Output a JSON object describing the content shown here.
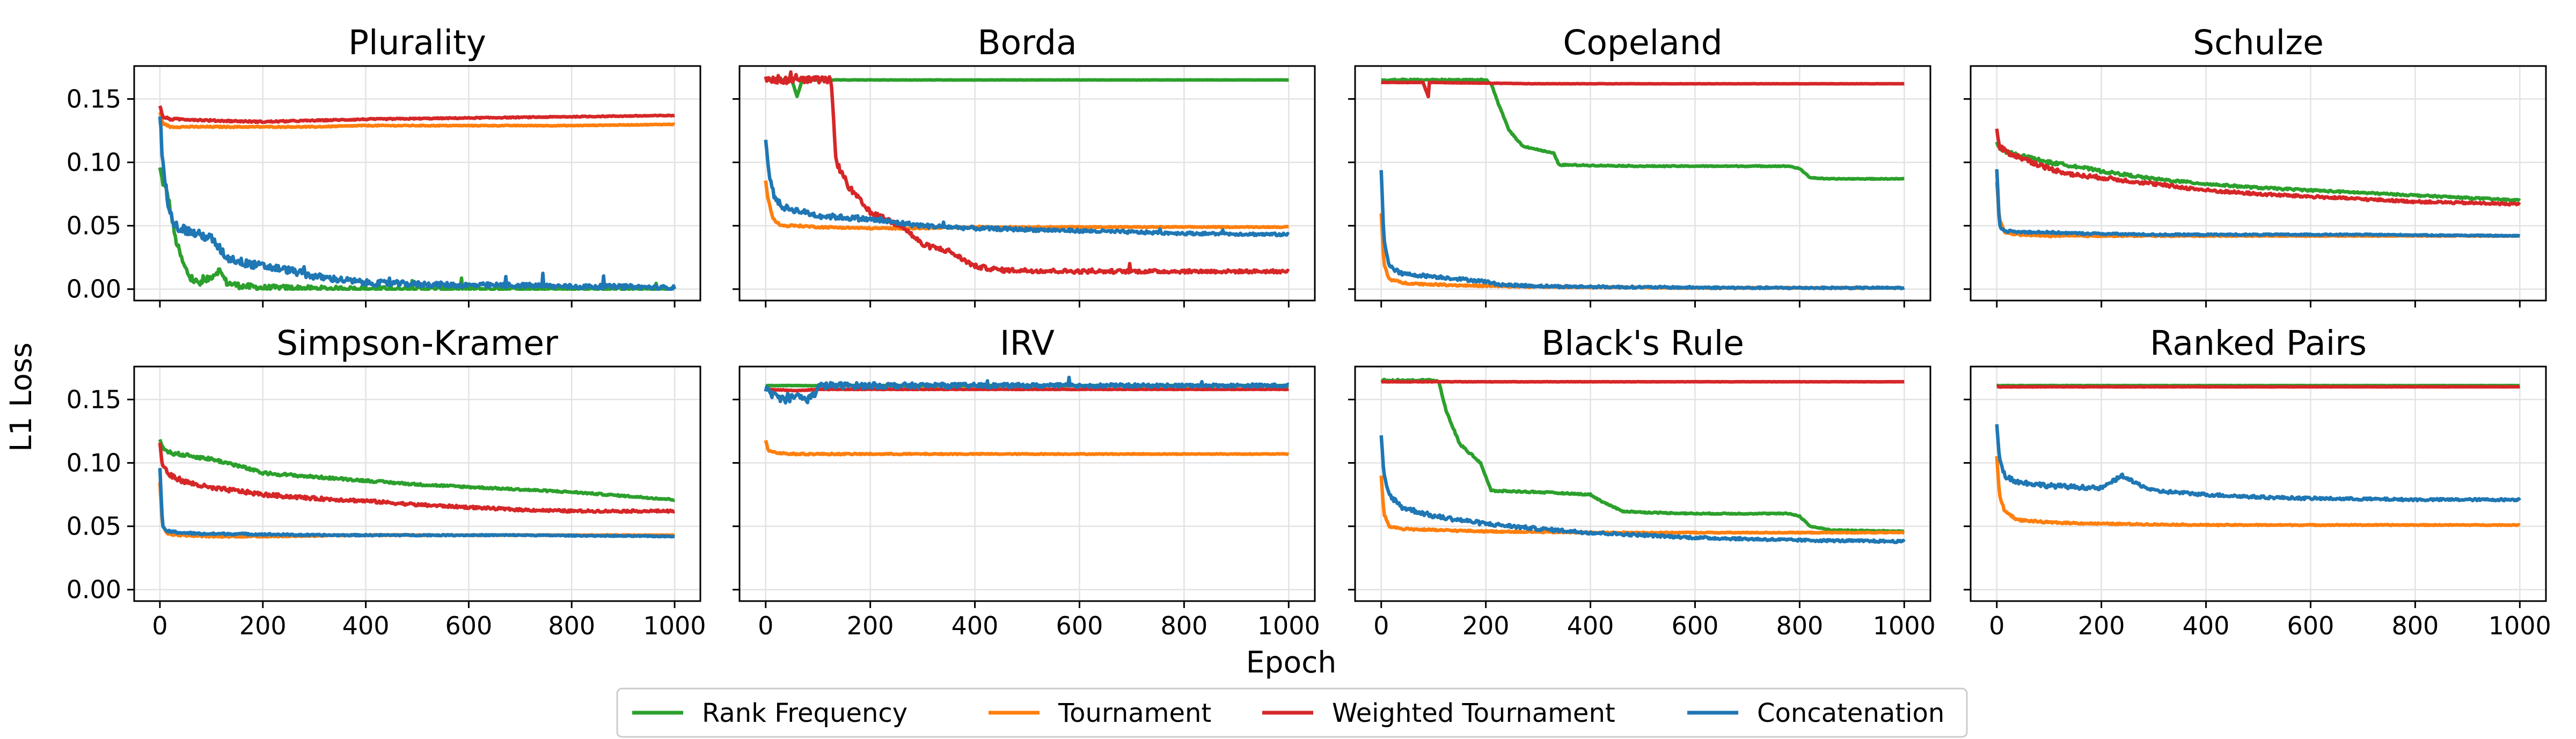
{
  "figure": {
    "xlabel": "Epoch",
    "ylabel": "L1 Loss",
    "xticks": [
      0,
      200,
      400,
      600,
      800,
      1000
    ],
    "yticks": [
      0.0,
      0.05,
      0.1,
      0.15
    ],
    "xlim": [
      -50,
      1050
    ],
    "ylim": [
      -0.009,
      0.176
    ],
    "grid": true,
    "legend_position": "bottom-center",
    "colors": {
      "Rank Frequency": "#2ca02c",
      "Tournament": "#ff7f0e",
      "Weighted Tournament": "#d62728",
      "Concatenation": "#1f77b4"
    }
  },
  "legend": [
    "Rank Frequency",
    "Tournament",
    "Weighted Tournament",
    "Concatenation"
  ],
  "chart_data": [
    {
      "type": "line",
      "title": "Plurality",
      "series": [
        {
          "name": "Rank Frequency",
          "x": [
            0,
            5,
            15,
            30,
            45,
            60,
            80,
            100,
            115,
            130,
            150,
            170,
            200,
            250,
            300,
            400,
            600,
            800,
            1000
          ],
          "y": [
            0.095,
            0.085,
            0.075,
            0.04,
            0.02,
            0.008,
            0.004,
            0.01,
            0.015,
            0.005,
            0.003,
            0.002,
            0.001,
            0.001,
            0.0005,
            0.0003,
            0.0002,
            0.0001,
            0.0001
          ],
          "noise": 0.003
        },
        {
          "name": "Tournament",
          "x": [
            0,
            5,
            20,
            50,
            100,
            200,
            300,
            400,
            600,
            800,
            1000
          ],
          "y": [
            0.14,
            0.131,
            0.128,
            0.128,
            0.128,
            0.128,
            0.128,
            0.129,
            0.129,
            0.129,
            0.13
          ],
          "noise": 0.0006
        },
        {
          "name": "Weighted Tournament",
          "x": [
            0,
            5,
            20,
            50,
            100,
            200,
            300,
            400,
            600,
            800,
            1000
          ],
          "y": [
            0.145,
            0.136,
            0.134,
            0.134,
            0.133,
            0.132,
            0.133,
            0.134,
            0.135,
            0.136,
            0.137
          ],
          "noise": 0.0008
        },
        {
          "name": "Concatenation",
          "x": [
            0,
            5,
            15,
            30,
            60,
            100,
            130,
            170,
            250,
            300,
            400,
            500,
            600,
            700,
            800,
            900,
            1000
          ],
          "y": [
            0.14,
            0.1,
            0.07,
            0.05,
            0.045,
            0.04,
            0.025,
            0.02,
            0.015,
            0.01,
            0.005,
            0.004,
            0.003,
            0.003,
            0.002,
            0.002,
            0.001
          ],
          "noise": 0.004
        }
      ]
    },
    {
      "type": "line",
      "title": "Borda",
      "series": [
        {
          "name": "Rank Frequency",
          "x": [
            0,
            50,
            60,
            70,
            100,
            400,
            1000
          ],
          "y": [
            0.165,
            0.165,
            0.152,
            0.165,
            0.165,
            0.165,
            0.165
          ],
          "noise": 0.0002
        },
        {
          "name": "Tournament",
          "x": [
            0,
            5,
            15,
            30,
            60,
            100,
            200,
            300,
            400,
            600,
            800,
            1000
          ],
          "y": [
            0.085,
            0.07,
            0.055,
            0.05,
            0.05,
            0.049,
            0.048,
            0.048,
            0.049,
            0.049,
            0.049,
            0.049
          ],
          "noise": 0.0008
        },
        {
          "name": "Weighted Tournament",
          "x": [
            0,
            100,
            125,
            135,
            160,
            200,
            260,
            300,
            350,
            400,
            450,
            600,
            800,
            1000
          ],
          "y": [
            0.165,
            0.165,
            0.165,
            0.1,
            0.08,
            0.06,
            0.05,
            0.035,
            0.03,
            0.018,
            0.015,
            0.014,
            0.014,
            0.014
          ],
          "noise": 0.003
        },
        {
          "name": "Concatenation",
          "x": [
            0,
            5,
            15,
            30,
            60,
            100,
            200,
            300,
            400,
            600,
            800,
            1000
          ],
          "y": [
            0.118,
            0.095,
            0.075,
            0.065,
            0.062,
            0.058,
            0.055,
            0.05,
            0.048,
            0.046,
            0.044,
            0.043
          ],
          "noise": 0.0025
        }
      ]
    },
    {
      "type": "line",
      "title": "Copeland",
      "series": [
        {
          "name": "Rank Frequency",
          "x": [
            0,
            200,
            210,
            225,
            245,
            270,
            300,
            330,
            340,
            500,
            780,
            800,
            820,
            850,
            1000
          ],
          "y": [
            0.165,
            0.165,
            0.162,
            0.145,
            0.125,
            0.113,
            0.11,
            0.107,
            0.098,
            0.097,
            0.097,
            0.095,
            0.088,
            0.087,
            0.087
          ],
          "noise": 0.0007
        },
        {
          "name": "Tournament",
          "x": [
            0,
            5,
            15,
            40,
            80,
            150,
            250,
            400,
            600,
            800,
            1000
          ],
          "y": [
            0.06,
            0.02,
            0.008,
            0.005,
            0.004,
            0.003,
            0.002,
            0.0015,
            0.001,
            0.001,
            0.001
          ],
          "noise": 0.0008
        },
        {
          "name": "Weighted Tournament",
          "x": [
            0,
            80,
            90,
            92,
            100,
            300,
            600,
            1000
          ],
          "y": [
            0.163,
            0.163,
            0.152,
            0.163,
            0.163,
            0.162,
            0.162,
            0.162
          ],
          "noise": 0.0002
        },
        {
          "name": "Concatenation",
          "x": [
            0,
            5,
            15,
            40,
            100,
            150,
            200,
            220,
            250,
            350,
            500,
            700,
            1000
          ],
          "y": [
            0.095,
            0.04,
            0.018,
            0.012,
            0.01,
            0.008,
            0.006,
            0.004,
            0.003,
            0.002,
            0.0015,
            0.001,
            0.001
          ],
          "noise": 0.0015
        }
      ]
    },
    {
      "type": "line",
      "title": "Schulze",
      "series": [
        {
          "name": "Rank Frequency",
          "x": [
            0,
            5,
            20,
            50,
            100,
            150,
            200,
            250,
            300,
            400,
            500,
            600,
            700,
            800,
            900,
            1000
          ],
          "y": [
            0.115,
            0.11,
            0.108,
            0.105,
            0.1,
            0.097,
            0.093,
            0.09,
            0.087,
            0.083,
            0.08,
            0.078,
            0.076,
            0.074,
            0.072,
            0.07
          ],
          "noise": 0.0015
        },
        {
          "name": "Tournament",
          "x": [
            0,
            5,
            15,
            40,
            100,
            200,
            400,
            600,
            800,
            1000
          ],
          "y": [
            0.085,
            0.055,
            0.045,
            0.043,
            0.042,
            0.042,
            0.042,
            0.042,
            0.042,
            0.042
          ],
          "noise": 0.0007
        },
        {
          "name": "Weighted Tournament",
          "x": [
            0,
            5,
            20,
            50,
            100,
            150,
            200,
            300,
            400,
            500,
            600,
            700,
            800,
            900,
            1000
          ],
          "y": [
            0.125,
            0.112,
            0.108,
            0.103,
            0.095,
            0.09,
            0.088,
            0.083,
            0.078,
            0.075,
            0.073,
            0.071,
            0.069,
            0.068,
            0.067
          ],
          "noise": 0.002
        },
        {
          "name": "Concatenation",
          "x": [
            0,
            5,
            15,
            40,
            80,
            150,
            300,
            500,
            700,
            1000
          ],
          "y": [
            0.095,
            0.05,
            0.046,
            0.045,
            0.045,
            0.044,
            0.043,
            0.043,
            0.043,
            0.042
          ],
          "noise": 0.0009
        }
      ]
    },
    {
      "type": "line",
      "title": "Simpson-Kramer",
      "series": [
        {
          "name": "Rank Frequency",
          "x": [
            0,
            5,
            20,
            50,
            100,
            150,
            200,
            300,
            400,
            500,
            600,
            700,
            800,
            900,
            1000
          ],
          "y": [
            0.12,
            0.112,
            0.108,
            0.106,
            0.103,
            0.098,
            0.092,
            0.089,
            0.086,
            0.083,
            0.081,
            0.079,
            0.077,
            0.074,
            0.071
          ],
          "noise": 0.0015
        },
        {
          "name": "Tournament",
          "x": [
            0,
            5,
            15,
            40,
            100,
            200,
            400,
            600,
            800,
            1000
          ],
          "y": [
            0.085,
            0.05,
            0.044,
            0.043,
            0.042,
            0.042,
            0.043,
            0.043,
            0.043,
            0.043
          ],
          "noise": 0.0007
        },
        {
          "name": "Weighted Tournament",
          "x": [
            0,
            5,
            20,
            50,
            100,
            150,
            200,
            300,
            400,
            500,
            600,
            700,
            800,
            1000
          ],
          "y": [
            0.115,
            0.098,
            0.09,
            0.085,
            0.08,
            0.078,
            0.075,
            0.072,
            0.07,
            0.067,
            0.065,
            0.063,
            0.062,
            0.062
          ],
          "noise": 0.002
        },
        {
          "name": "Concatenation",
          "x": [
            0,
            5,
            15,
            40,
            80,
            150,
            300,
            500,
            700,
            1000
          ],
          "y": [
            0.095,
            0.05,
            0.046,
            0.045,
            0.044,
            0.044,
            0.043,
            0.043,
            0.043,
            0.042
          ],
          "noise": 0.0009
        }
      ]
    },
    {
      "type": "line",
      "title": "IRV",
      "series": [
        {
          "name": "Rank Frequency",
          "x": [
            0,
            100,
            300,
            600,
            1000
          ],
          "y": [
            0.161,
            0.161,
            0.161,
            0.161,
            0.161
          ],
          "noise": 0.0002
        },
        {
          "name": "Tournament",
          "x": [
            0,
            5,
            20,
            50,
            100,
            200,
            400,
            600,
            800,
            1000
          ],
          "y": [
            0.118,
            0.11,
            0.108,
            0.107,
            0.107,
            0.107,
            0.107,
            0.107,
            0.107,
            0.107
          ],
          "noise": 0.0007
        },
        {
          "name": "Weighted Tournament",
          "x": [
            0,
            60,
            100,
            300,
            600,
            1000
          ],
          "y": [
            0.158,
            0.157,
            0.158,
            0.158,
            0.158,
            0.158
          ],
          "noise": 0.0003
        },
        {
          "name": "Concatenation",
          "x": [
            0,
            20,
            40,
            60,
            80,
            95,
            100,
            110,
            300,
            1000
          ],
          "y": [
            0.158,
            0.152,
            0.15,
            0.153,
            0.15,
            0.155,
            0.16,
            0.161,
            0.161,
            0.161
          ],
          "noise": 0.003
        }
      ]
    },
    {
      "type": "line",
      "title": "Black's Rule",
      "series": [
        {
          "name": "Rank Frequency",
          "x": [
            0,
            100,
            110,
            125,
            150,
            190,
            210,
            300,
            400,
            420,
            460,
            500,
            600,
            780,
            800,
            820,
            860,
            1000
          ],
          "y": [
            0.165,
            0.165,
            0.164,
            0.14,
            0.115,
            0.1,
            0.078,
            0.077,
            0.075,
            0.07,
            0.062,
            0.061,
            0.06,
            0.06,
            0.058,
            0.05,
            0.047,
            0.046
          ],
          "noise": 0.0009
        },
        {
          "name": "Tournament",
          "x": [
            0,
            5,
            15,
            40,
            100,
            200,
            400,
            600,
            800,
            1000
          ],
          "y": [
            0.09,
            0.06,
            0.05,
            0.048,
            0.047,
            0.046,
            0.045,
            0.045,
            0.045,
            0.045
          ],
          "noise": 0.0008
        },
        {
          "name": "Weighted Tournament",
          "x": [
            0,
            300,
            600,
            1000
          ],
          "y": [
            0.164,
            0.164,
            0.164,
            0.164
          ],
          "noise": 0.0002
        },
        {
          "name": "Concatenation",
          "x": [
            0,
            5,
            15,
            40,
            100,
            200,
            300,
            400,
            500,
            600,
            800,
            1000
          ],
          "y": [
            0.12,
            0.09,
            0.075,
            0.065,
            0.058,
            0.052,
            0.048,
            0.045,
            0.043,
            0.041,
            0.039,
            0.038
          ],
          "noise": 0.002
        }
      ]
    },
    {
      "type": "line",
      "title": "Ranked Pairs",
      "series": [
        {
          "name": "Rank Frequency",
          "x": [
            0,
            300,
            1000
          ],
          "y": [
            0.161,
            0.161,
            0.161
          ],
          "noise": 0.0002
        },
        {
          "name": "Tournament",
          "x": [
            0,
            5,
            15,
            40,
            100,
            200,
            400,
            600,
            800,
            1000
          ],
          "y": [
            0.105,
            0.075,
            0.062,
            0.055,
            0.053,
            0.052,
            0.051,
            0.051,
            0.051,
            0.051
          ],
          "noise": 0.0008
        },
        {
          "name": "Weighted Tournament",
          "x": [
            0,
            300,
            1000
          ],
          "y": [
            0.16,
            0.16,
            0.16
          ],
          "noise": 0.0002
        },
        {
          "name": "Concatenation",
          "x": [
            0,
            5,
            15,
            40,
            100,
            200,
            240,
            260,
            300,
            400,
            500,
            600,
            800,
            1000
          ],
          "y": [
            0.13,
            0.105,
            0.09,
            0.085,
            0.082,
            0.08,
            0.09,
            0.085,
            0.078,
            0.075,
            0.073,
            0.072,
            0.071,
            0.071
          ],
          "noise": 0.002
        }
      ]
    }
  ]
}
